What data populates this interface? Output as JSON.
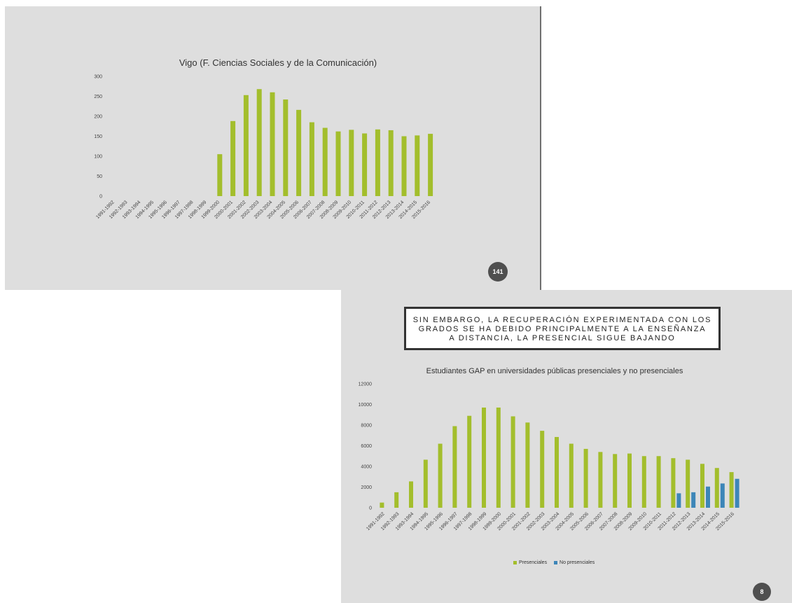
{
  "slides": [
    {
      "page_number": "141"
    },
    {
      "page_number": "8",
      "headline": [
        "SIN EMBARGO, LA RECUPERACIÓN EXPERIMENTADA CON LOS",
        "GRADOS SE HA DEBIDO PRINCIPALMENTE A LA ENSEÑANZA",
        "A DISTANCIA, LA PRESENCIAL SIGUE BAJANDO"
      ]
    }
  ],
  "chart_data": [
    {
      "type": "bar",
      "title": "Vigo (F. Ciencias Sociales y de la Comunicación)",
      "categories": [
        "1991-1992",
        "1992-1993",
        "1993-1994",
        "1994-1995",
        "1995-1996",
        "1996-1997",
        "1997-1998",
        "1998-1999",
        "1999-2000",
        "2000-2001",
        "2001-2002",
        "2002-2003",
        "2003-2004",
        "2004-2005",
        "2005-2006",
        "2006-2007",
        "2007-2008",
        "2008-2009",
        "2009-2010",
        "2010-2011",
        "2011-2012",
        "2012-2013",
        "2013-2014",
        "2014-2015",
        "2015-2016"
      ],
      "series": [
        {
          "values": [
            0,
            0,
            0,
            0,
            0,
            0,
            0,
            0,
            105,
            188,
            253,
            268,
            260,
            242,
            216,
            185,
            171,
            162,
            166,
            157,
            167,
            165,
            150,
            152,
            156
          ],
          "color": "#a3be2c"
        }
      ],
      "yticks": [
        0,
        50,
        100,
        150,
        200,
        250,
        300
      ],
      "ylim": [
        0,
        300
      ],
      "grid": false
    },
    {
      "type": "bar",
      "title": "Estudiantes GAP en universidades públicas presenciales y no presenciales",
      "categories": [
        "1991-1992",
        "1992-1993",
        "1993-1994",
        "1994-1995",
        "1995-1996",
        "1996-1997",
        "1997-1998",
        "1998-1999",
        "1999-2000",
        "2000-2001",
        "2001-2002",
        "2002-2003",
        "2003-2004",
        "2004-2005",
        "2005-2006",
        "2006-2007",
        "2007-2008",
        "2008-2009",
        "2009-2010",
        "2010-2011",
        "2011-2012",
        "2012-2013",
        "2013-2014",
        "2014-2015",
        "2015-2016"
      ],
      "series": [
        {
          "name": "Presenciales",
          "color": "#a3be2c",
          "values": [
            500,
            1500,
            2550,
            4650,
            6200,
            7900,
            8900,
            9700,
            9700,
            8850,
            8250,
            7450,
            6850,
            6200,
            5700,
            5400,
            5200,
            5250,
            5000,
            5000,
            4800,
            4650,
            4250,
            3850,
            3450
          ]
        },
        {
          "name": "No presenciales",
          "color": "#3d86b8",
          "values": [
            null,
            null,
            null,
            null,
            null,
            null,
            null,
            null,
            null,
            null,
            null,
            null,
            null,
            null,
            null,
            null,
            null,
            null,
            null,
            null,
            1400,
            1500,
            2050,
            2350,
            2800
          ]
        }
      ],
      "yticks": [
        0,
        2000,
        4000,
        6000,
        8000,
        10000,
        12000
      ],
      "ylim": [
        0,
        12000
      ],
      "legend": "bottom",
      "grid": false
    }
  ]
}
